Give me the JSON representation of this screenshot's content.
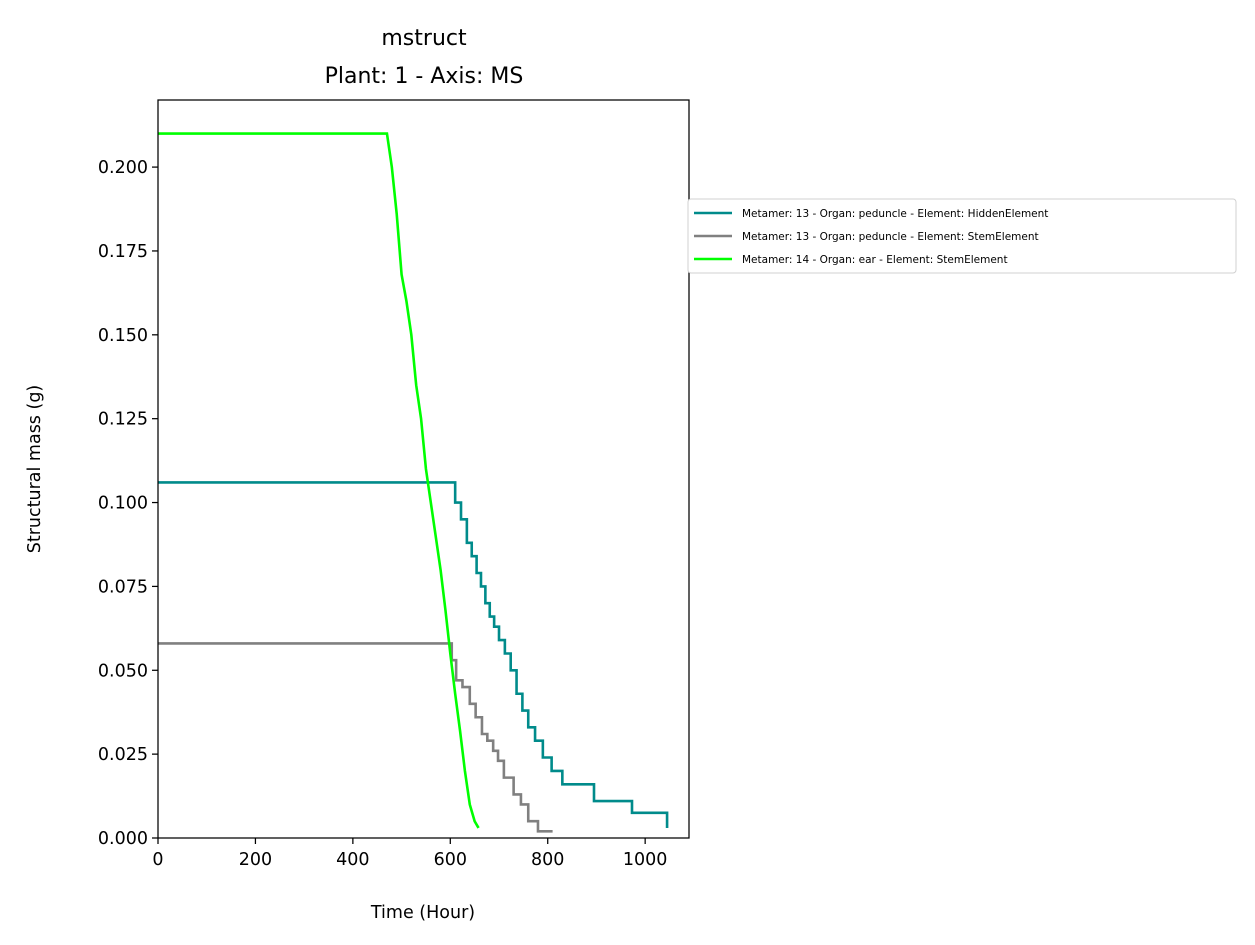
{
  "chart_data": {
    "type": "line",
    "title": "mstruct",
    "subtitle": "Plant: 1 - Axis: MS",
    "xlabel": "Time (Hour)",
    "ylabel": "Structural mass (g)",
    "xlim": [
      0,
      1090
    ],
    "ylim": [
      0,
      0.22
    ],
    "xticks": [
      0,
      200,
      400,
      600,
      800,
      1000
    ],
    "xtick_labels": [
      "0",
      "200",
      "400",
      "600",
      "800",
      "1000"
    ],
    "yticks": [
      0,
      0.025,
      0.05,
      0.075,
      0.1,
      0.125,
      0.15,
      0.175,
      0.2
    ],
    "ytick_labels": [
      "0.000",
      "0.025",
      "0.050",
      "0.075",
      "0.100",
      "0.125",
      "0.150",
      "0.175",
      "0.200"
    ],
    "legend_position": "outside-right",
    "series": [
      {
        "name": "Metamer: 13 - Organ: peduncle - Element: HiddenElement",
        "color": "#008b8b",
        "step": true,
        "x": [
          0,
          605,
          610,
          622,
          634,
          644,
          654,
          663,
          672,
          681,
          690,
          700,
          712,
          724,
          736,
          748,
          760,
          774,
          790,
          808,
          830,
          895,
          973,
          1045
        ],
        "y": [
          0.106,
          0.106,
          0.1,
          0.095,
          0.088,
          0.084,
          0.079,
          0.075,
          0.07,
          0.066,
          0.063,
          0.059,
          0.055,
          0.05,
          0.043,
          0.038,
          0.033,
          0.029,
          0.024,
          0.02,
          0.016,
          0.011,
          0.0075,
          0.003
        ]
      },
      {
        "name": "Metamer: 13 - Organ: peduncle - Element: StemElement",
        "color": "#808080",
        "step": true,
        "x": [
          0,
          588,
          603,
          612,
          625,
          640,
          652,
          665,
          676,
          688,
          698,
          710,
          730,
          745,
          760,
          780,
          810
        ],
        "y": [
          0.058,
          0.058,
          0.053,
          0.047,
          0.045,
          0.04,
          0.036,
          0.031,
          0.029,
          0.026,
          0.023,
          0.018,
          0.013,
          0.01,
          0.005,
          0.002,
          0.002
        ]
      },
      {
        "name": "Metamer: 14 - Organ: ear - Element: StemElement",
        "color": "#00ff00",
        "step": false,
        "x": [
          0,
          470,
          480,
          490,
          500,
          510,
          520,
          530,
          540,
          550,
          560,
          570,
          580,
          590,
          600,
          610,
          620,
          630,
          640,
          650,
          658
        ],
        "y": [
          0.21,
          0.21,
          0.2,
          0.186,
          0.168,
          0.16,
          0.15,
          0.135,
          0.125,
          0.11,
          0.1,
          0.09,
          0.08,
          0.068,
          0.055,
          0.043,
          0.032,
          0.02,
          0.01,
          0.005,
          0.003
        ]
      }
    ]
  }
}
